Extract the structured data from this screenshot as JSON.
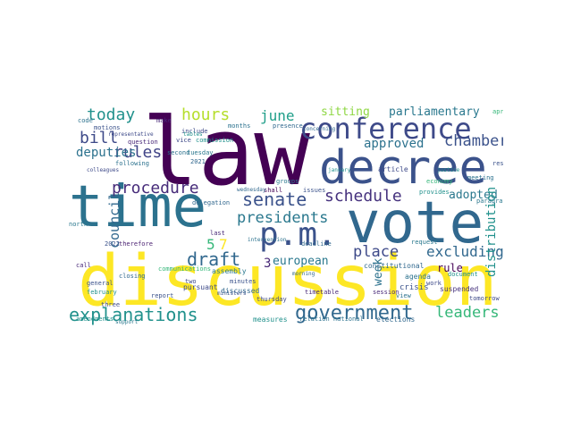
{
  "words": [
    {
      "text": "law",
      "color": "#440154"
    },
    {
      "text": "discussion",
      "color": "#fde725"
    },
    {
      "text": "time",
      "color": "#2c728e"
    },
    {
      "text": "vote",
      "color": "#31688e"
    },
    {
      "text": "decree",
      "color": "#3b528b"
    },
    {
      "text": "conference",
      "color": "#3e4a89"
    },
    {
      "text": "p.m.",
      "color": "#3b528b"
    },
    {
      "text": "explanations",
      "color": "#21918c"
    },
    {
      "text": "government",
      "color": "#31688e"
    },
    {
      "text": "presidents",
      "color": "#2a788e"
    },
    {
      "text": "senate",
      "color": "#3b528b"
    },
    {
      "text": "schedule",
      "color": "#46327e"
    },
    {
      "text": "procedure",
      "color": "#472c7a"
    },
    {
      "text": "draft",
      "color": "#31688e"
    },
    {
      "text": "leaders",
      "color": "#35b779"
    },
    {
      "text": "today",
      "color": "#21918c"
    },
    {
      "text": "hours",
      "color": "#b5de2b"
    },
    {
      "text": "june",
      "color": "#1f9e89"
    },
    {
      "text": "bill",
      "color": "#3e4a89"
    },
    {
      "text": "rules",
      "color": "#414487"
    },
    {
      "text": "deputies",
      "color": "#2c728e"
    },
    {
      "text": "chamber",
      "color": "#3b528b"
    },
    {
      "text": "approved",
      "color": "#2c728e"
    },
    {
      "text": "adopted",
      "color": "#2a788e"
    },
    {
      "text": "parliamentary",
      "color": "#2a788e"
    },
    {
      "text": "sitting",
      "color": "#8fd744"
    },
    {
      "text": "excluding",
      "color": "#31688e"
    },
    {
      "text": "european",
      "color": "#2a788e"
    },
    {
      "text": "place",
      "color": "#3e4a89"
    },
    {
      "text": "week",
      "color": "#2c728e"
    },
    {
      "text": "council",
      "color": "#31688e"
    },
    {
      "text": "distribution",
      "color": "#21918c"
    },
    {
      "text": "rule",
      "color": "#440154"
    },
    {
      "text": "5",
      "color": "#35b779"
    },
    {
      "text": "7",
      "color": "#fde725"
    },
    {
      "text": "3",
      "color": "#482878"
    },
    {
      "text": "crisis",
      "color": "#3b528b"
    },
    {
      "text": "agenda",
      "color": "#2c728e"
    },
    {
      "text": "suspended",
      "color": "#46327e"
    },
    {
      "text": "tomorrow",
      "color": "#3e4a89"
    },
    {
      "text": "elections",
      "color": "#31688e"
    },
    {
      "text": "relation national",
      "color": "#2c728e"
    },
    {
      "text": "measures",
      "color": "#21918c"
    },
    {
      "text": "discussed",
      "color": "#31688e"
    },
    {
      "text": "pursuant",
      "color": "#3e4a89"
    },
    {
      "text": "assembly",
      "color": "#2a788e"
    },
    {
      "text": "therefore",
      "color": "#481f70"
    },
    {
      "text": "motions",
      "color": "#3b528b"
    },
    {
      "text": "question",
      "color": "#482878"
    },
    {
      "text": "second",
      "color": "#2c728e"
    },
    {
      "text": "vice",
      "color": "#3e4a89"
    },
    {
      "text": "commission",
      "color": "#21918c"
    },
    {
      "text": "presence",
      "color": "#31688e"
    },
    {
      "text": "groups",
      "color": "#2a788e"
    },
    {
      "text": "issues",
      "color": "#3b528b"
    },
    {
      "text": "shall",
      "color": "#440154"
    },
    {
      "text": "deadline",
      "color": "#31688e"
    },
    {
      "text": "timetable",
      "color": "#482878"
    },
    {
      "text": "constitutional",
      "color": "#31688e"
    },
    {
      "text": "article",
      "color": "#3e4a89"
    },
    {
      "text": "provides",
      "color": "#21918c"
    },
    {
      "text": "meeting",
      "color": "#2c728e"
    },
    {
      "text": "economy",
      "color": "#35b779"
    },
    {
      "text": "resolution",
      "color": "#3b528b"
    },
    {
      "text": "request",
      "color": "#2a788e"
    },
    {
      "text": "work",
      "color": "#3e4a89"
    },
    {
      "text": "session",
      "color": "#482878"
    },
    {
      "text": "document",
      "color": "#21918c"
    },
    {
      "text": "view",
      "color": "#2c728e"
    },
    {
      "text": "minutes",
      "color": "#3b528b"
    },
    {
      "text": "delegation",
      "color": "#31688e"
    },
    {
      "text": "thursday",
      "color": "#3e4a89"
    },
    {
      "text": "tuesday",
      "color": "#2a788e"
    },
    {
      "text": "wednesday",
      "color": "#31688e"
    },
    {
      "text": "representative",
      "color": "#3e4a89"
    },
    {
      "text": "february",
      "color": "#21918c"
    },
    {
      "text": "following",
      "color": "#2c728e"
    },
    {
      "text": "general",
      "color": "#3b528b"
    },
    {
      "text": "communications",
      "color": "#35b779"
    },
    {
      "text": "amendments",
      "color": "#21918c"
    },
    {
      "text": "three",
      "color": "#3e4a89"
    },
    {
      "text": "support",
      "color": "#2a788e"
    },
    {
      "text": "report",
      "color": "#3b528b"
    },
    {
      "text": "closing",
      "color": "#31688e"
    },
    {
      "text": "code",
      "color": "#2c728e"
    },
    {
      "text": "make",
      "color": "#482878"
    },
    {
      "text": "include",
      "color": "#3e4a89"
    },
    {
      "text": "tables",
      "color": "#21918c"
    },
    {
      "text": "months",
      "color": "#2c728e"
    },
    {
      "text": "2021",
      "color": "#31688e"
    },
    {
      "text": "2022",
      "color": "#3b528b"
    },
    {
      "text": "two",
      "color": "#3e4a89"
    },
    {
      "text": "last",
      "color": "#482878"
    },
    {
      "text": "north",
      "color": "#2a788e"
    },
    {
      "text": "morning",
      "color": "#31688e"
    },
    {
      "text": "january",
      "color": "#21918c"
    },
    {
      "text": "april",
      "color": "#35b779"
    },
    {
      "text": "intervention",
      "color": "#2c728e"
    },
    {
      "text": "ministers",
      "color": "#3b528b"
    },
    {
      "text": "paragraph",
      "color": "#2a788e"
    },
    {
      "text": "colleagues",
      "color": "#3e4a89"
    },
    {
      "text": "concerning",
      "color": "#31688e"
    },
    {
      "text": "justice",
      "color": "#21918c"
    },
    {
      "text": "call",
      "color": "#482878"
    }
  ]
}
